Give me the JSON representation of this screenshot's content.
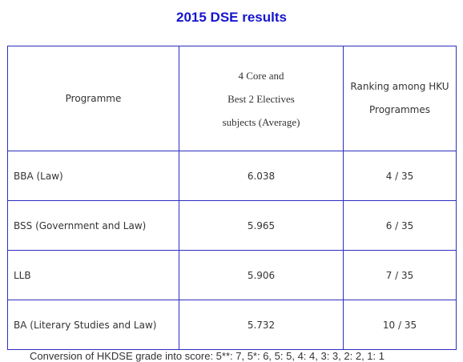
{
  "title": "2015 DSE results",
  "table": {
    "headers": {
      "programme": "Programme",
      "score_line1": "4 Core and",
      "score_line2": "Best 2 Electives",
      "score_line3": "subjects (Average)",
      "ranking_line1": "Ranking among HKU",
      "ranking_line2": "Programmes"
    },
    "rows": [
      {
        "programme": "BBA (Law)",
        "score": "6.038",
        "rank": "4 / 35"
      },
      {
        "programme": "BSS (Government and Law)",
        "score": "5.965",
        "rank": "6 / 35"
      },
      {
        "programme": "LLB",
        "score": "5.906",
        "rank": "7 / 35"
      },
      {
        "programme": "BA (Literary Studies and Law)",
        "score": "5.732",
        "rank": "10 / 35"
      }
    ]
  },
  "footnote": "Conversion of HKDSE grade into score: 5**: 7, 5*: 6, 5: 5, 4: 4, 3: 3, 2: 2, 1: 1"
}
